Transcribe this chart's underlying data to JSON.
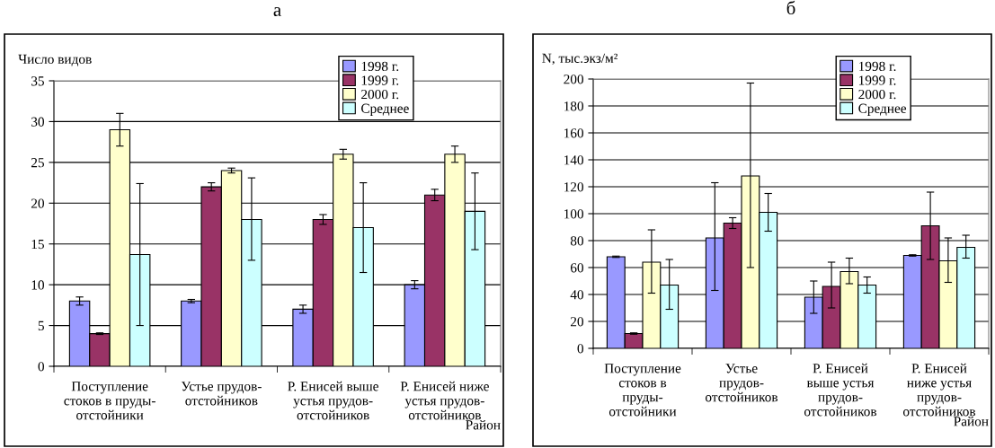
{
  "chart_data": [
    {
      "type": "bar",
      "title": "а",
      "ylabel": "Число видов",
      "xlabel": "Район",
      "categories": [
        "Поступление\nстоков в пруды-\nотстойники",
        "Устье прудов-\nотстойников",
        "Р. Енисей выше\nустья прудов-\nотстойников",
        "Р. Енисей ниже\nустья прудов-\nотстойников"
      ],
      "series": [
        {
          "name": "1998 г.",
          "color": "#9999ff",
          "values": [
            8,
            8,
            7,
            10
          ],
          "errors": [
            0.5,
            0.2,
            0.5,
            0.5
          ]
        },
        {
          "name": "1999 г.",
          "color": "#993366",
          "values": [
            4,
            22,
            18,
            21
          ],
          "errors": [
            0.1,
            0.5,
            0.6,
            0.7
          ]
        },
        {
          "name": "2000 г.",
          "color": "#ffffcc",
          "values": [
            29,
            24,
            26,
            26
          ],
          "errors": [
            2,
            0.3,
            0.6,
            1
          ]
        },
        {
          "name": "Среднее",
          "color": "#ccffff",
          "values": [
            13.7,
            18,
            17,
            19
          ],
          "errors": [
            [
              5,
              22.4
            ],
            [
              13,
              23.1
            ],
            [
              11.5,
              22.5
            ],
            [
              14.3,
              23.7
            ]
          ]
        }
      ],
      "ylim": [
        0,
        35
      ],
      "yticks": [
        0,
        5,
        10,
        15,
        20,
        25,
        30,
        35
      ],
      "grid": "y",
      "legend": "top right"
    },
    {
      "type": "bar",
      "title": "б",
      "ylabel": "N, тыс.экз/м²",
      "xlabel": "Район",
      "categories": [
        "Поступление\nстоков в\nпруды-\nотстойники",
        "Устье\nпрудов-\nотстойников",
        "Р. Енисей\nвыше устья\nпрудов-\nотстойников",
        "Р. Енисей\nниже устья\nпрудов-\nотстойников"
      ],
      "series": [
        {
          "name": "1998 г.",
          "color": "#9999ff",
          "values": [
            68,
            82,
            38,
            69
          ],
          "errors": [
            0.5,
            [
              43,
              123
            ],
            [
              26,
              50
            ],
            0.5
          ]
        },
        {
          "name": "1999 г.",
          "color": "#993366",
          "values": [
            11,
            93,
            46,
            91
          ],
          "errors": [
            0.5,
            [
              89,
              97
            ],
            [
              30,
              64
            ],
            [
              66,
              116
            ]
          ]
        },
        {
          "name": "2000 г.",
          "color": "#ffffcc",
          "values": [
            64,
            128,
            57,
            65
          ],
          "errors": [
            [
              41,
              88
            ],
            [
              60,
              197
            ],
            [
              48,
              67
            ],
            [
              49,
              82
            ]
          ]
        },
        {
          "name": "Среднее",
          "color": "#ccffff",
          "values": [
            47,
            101,
            47,
            75
          ],
          "errors": [
            [
              29,
              66
            ],
            [
              87,
              115
            ],
            [
              41,
              53
            ],
            [
              67,
              84
            ]
          ]
        }
      ],
      "ylim": [
        0,
        200
      ],
      "yticks": [
        0,
        20,
        40,
        60,
        80,
        100,
        120,
        140,
        160,
        180,
        200
      ],
      "grid": "y",
      "legend": "top right"
    }
  ]
}
